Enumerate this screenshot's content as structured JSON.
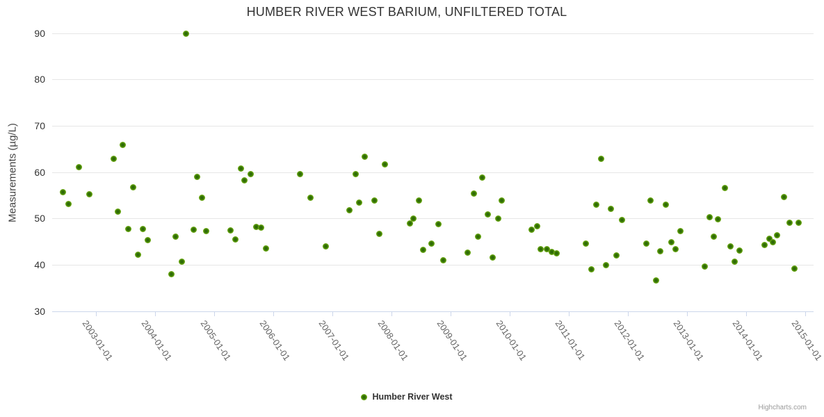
{
  "title": "HUMBER RIVER WEST BARIUM, UNFILTERED TOTAL",
  "y_axis": {
    "title": "Measurements (µg/L)",
    "ticks": [
      30,
      40,
      50,
      60,
      70,
      80,
      90
    ]
  },
  "x_axis": {
    "ticks": [
      {
        "x": 2003,
        "label": "2003-01-01"
      },
      {
        "x": 2004,
        "label": "2004-01-01"
      },
      {
        "x": 2005,
        "label": "2005-01-01"
      },
      {
        "x": 2006,
        "label": "2006-01-01"
      },
      {
        "x": 2007,
        "label": "2007-01-01"
      },
      {
        "x": 2008,
        "label": "2008-01-01"
      },
      {
        "x": 2009,
        "label": "2009-01-01"
      },
      {
        "x": 2010,
        "label": "2010-01-01"
      },
      {
        "x": 2011,
        "label": "2011-01-01"
      },
      {
        "x": 2012,
        "label": "2012-01-01"
      },
      {
        "x": 2013,
        "label": "2013-01-01"
      },
      {
        "x": 2014,
        "label": "2014-01-01"
      },
      {
        "x": 2015,
        "label": "2015-01-01"
      }
    ]
  },
  "legend": {
    "label": "Humber River West"
  },
  "credits": "Highcharts.com",
  "colors": {
    "title_text": "#333333",
    "axis_label_y": "#333333",
    "axis_label_x": "#666666",
    "gridline": "#e6e6e6",
    "axis_line": "#ccd6eb",
    "marker_outer": "#7eb71f",
    "marker_inner": "#2e6b05",
    "credits_text": "#999999"
  },
  "chart_data": {
    "type": "scatter",
    "title": "HUMBER RIVER WEST BARIUM, UNFILTERED TOTAL",
    "xlabel": "",
    "ylabel": "Measurements (µg/L)",
    "xlim": [
      2002.26,
      2015.145
    ],
    "ylim": [
      30,
      90
    ],
    "grid": "horizontal-only",
    "legend_position": "bottom-center",
    "series": [
      {
        "name": "Humber River West",
        "color": "#7eb71f",
        "points": [
          [
            2002.44,
            55.6
          ],
          [
            2002.54,
            53.1
          ],
          [
            2002.71,
            61.1
          ],
          [
            2002.89,
            55.2
          ],
          [
            2003.3,
            62.8
          ],
          [
            2003.37,
            51.4
          ],
          [
            2003.46,
            65.8
          ],
          [
            2003.55,
            47.7
          ],
          [
            2003.63,
            56.7
          ],
          [
            2003.71,
            42.2
          ],
          [
            2003.8,
            47.7
          ],
          [
            2003.88,
            45.3
          ],
          [
            2004.28,
            37.9
          ],
          [
            2004.35,
            46.0
          ],
          [
            2004.45,
            40.7
          ],
          [
            2004.53,
            89.8
          ],
          [
            2004.66,
            47.6
          ],
          [
            2004.71,
            58.9
          ],
          [
            2004.79,
            54.5
          ],
          [
            2004.87,
            47.3
          ],
          [
            2005.28,
            47.4
          ],
          [
            2005.36,
            45.4
          ],
          [
            2005.45,
            60.8
          ],
          [
            2005.51,
            58.2
          ],
          [
            2005.62,
            59.5
          ],
          [
            2005.71,
            48.2
          ],
          [
            2005.8,
            48.0
          ],
          [
            2005.88,
            43.5
          ],
          [
            2006.46,
            59.6
          ],
          [
            2006.63,
            54.4
          ],
          [
            2006.89,
            44.0
          ],
          [
            2007.29,
            51.8
          ],
          [
            2007.4,
            59.6
          ],
          [
            2007.46,
            53.4
          ],
          [
            2007.55,
            63.3
          ],
          [
            2007.71,
            53.9
          ],
          [
            2007.8,
            46.6
          ],
          [
            2007.89,
            61.6
          ],
          [
            2008.31,
            48.9
          ],
          [
            2008.37,
            50.0
          ],
          [
            2008.47,
            53.9
          ],
          [
            2008.54,
            43.2
          ],
          [
            2008.68,
            44.6
          ],
          [
            2008.8,
            48.8
          ],
          [
            2008.88,
            41.0
          ],
          [
            2009.29,
            42.6
          ],
          [
            2009.4,
            55.4
          ],
          [
            2009.47,
            46.0
          ],
          [
            2009.54,
            58.8
          ],
          [
            2009.63,
            50.8
          ],
          [
            2009.72,
            41.5
          ],
          [
            2009.81,
            49.9
          ],
          [
            2009.87,
            53.8
          ],
          [
            2010.37,
            47.5
          ],
          [
            2010.47,
            48.3
          ],
          [
            2010.53,
            43.3
          ],
          [
            2010.63,
            43.4
          ],
          [
            2010.71,
            42.7
          ],
          [
            2010.8,
            42.5
          ],
          [
            2011.29,
            44.5
          ],
          [
            2011.38,
            39.0
          ],
          [
            2011.47,
            52.9
          ],
          [
            2011.55,
            62.9
          ],
          [
            2011.63,
            39.9
          ],
          [
            2011.71,
            52.0
          ],
          [
            2011.81,
            42.0
          ],
          [
            2011.9,
            49.6
          ],
          [
            2012.32,
            44.6
          ],
          [
            2012.39,
            53.9
          ],
          [
            2012.48,
            36.6
          ],
          [
            2012.55,
            42.9
          ],
          [
            2012.64,
            53.0
          ],
          [
            2012.74,
            44.9
          ],
          [
            2012.81,
            43.3
          ],
          [
            2012.89,
            47.3
          ],
          [
            2013.3,
            39.6
          ],
          [
            2013.39,
            50.2
          ],
          [
            2013.46,
            46.0
          ],
          [
            2013.53,
            49.8
          ],
          [
            2013.64,
            56.5
          ],
          [
            2013.74,
            43.9
          ],
          [
            2013.81,
            40.7
          ],
          [
            2013.89,
            43.1
          ],
          [
            2014.32,
            44.2
          ],
          [
            2014.4,
            45.6
          ],
          [
            2014.46,
            44.9
          ],
          [
            2014.53,
            46.4
          ],
          [
            2014.65,
            54.6
          ],
          [
            2014.74,
            49.1
          ],
          [
            2014.82,
            39.2
          ],
          [
            2014.89,
            49.1
          ]
        ]
      }
    ]
  }
}
